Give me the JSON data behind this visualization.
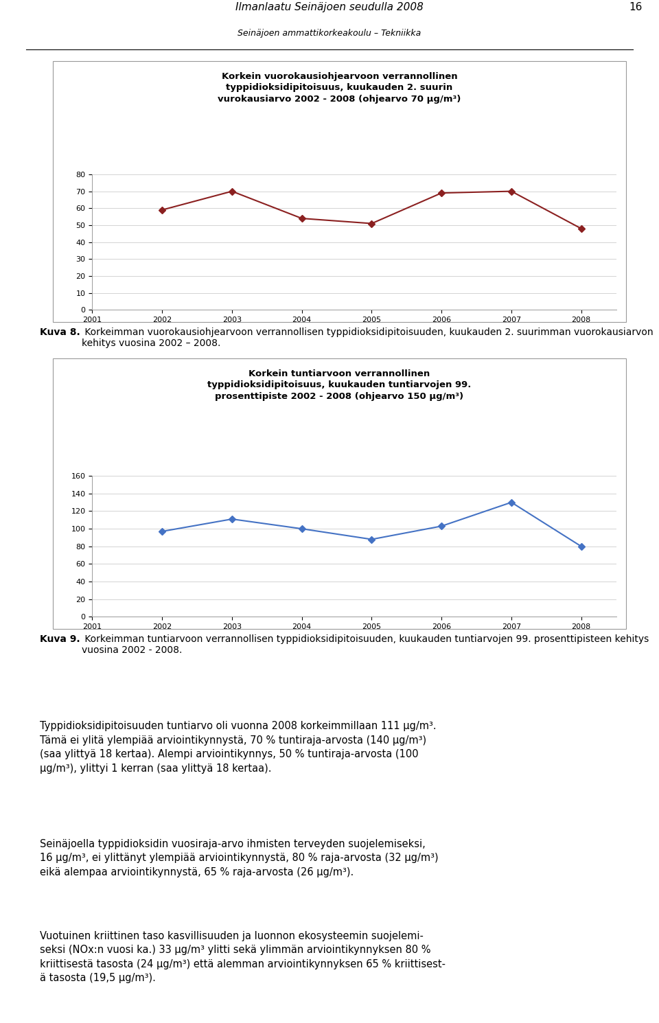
{
  "page_title": "Ilmanlaatu Seinäjoen seudulla 2008",
  "page_subtitle": "Seinäjoen ammattikorkeakoulu – Tekniikka",
  "page_number": "16",
  "chart1": {
    "title_line1": "Korkein vuorokausiohjearvoon verrannollinen",
    "title_line2": "typpidioksidipitoisuus, kuukauden 2. suurin",
    "title_line3": "vurokausiarvo 2002 - 2008 (ohjearvo 70 μg/m³)",
    "years": [
      2002,
      2003,
      2004,
      2005,
      2006,
      2007,
      2008
    ],
    "values": [
      59,
      70,
      54,
      51,
      69,
      70,
      48
    ],
    "color": "#8B2020",
    "marker": "D",
    "ylim": [
      0,
      80
    ],
    "yticks": [
      0,
      10,
      20,
      30,
      40,
      50,
      60,
      70,
      80
    ],
    "xticks": [
      2001,
      2002,
      2003,
      2004,
      2005,
      2006,
      2007,
      2008
    ]
  },
  "caption8_bold": "Kuva 8.",
  "caption8_rest": " Korkeimman vuorokausiohjearvoon verrannollisen typpidioksidipitoisuuden, kuukauden 2. suurimman vuorokausiarvon kehitys vuosina 2002 – 2008.",
  "chart2": {
    "title_line1": "Korkein tuntiarvoon verrannollinen",
    "title_line2": "typpidioksidipitoisuus, kuukauden tuntiarvojen 99.",
    "title_line3": "prosenttipiste 2002 - 2008 (ohjearvo 150 μg/m³)",
    "years": [
      2002,
      2003,
      2004,
      2005,
      2006,
      2007,
      2008
    ],
    "values": [
      97,
      111,
      100,
      88,
      103,
      130,
      80
    ],
    "color": "#4472C4",
    "marker": "D",
    "ylim": [
      0,
      160
    ],
    "yticks": [
      0,
      20,
      40,
      60,
      80,
      100,
      120,
      140,
      160
    ],
    "xticks": [
      2001,
      2002,
      2003,
      2004,
      2005,
      2006,
      2007,
      2008
    ]
  },
  "caption9_bold": "Kuva 9.",
  "caption9_rest": " Korkeimman tuntiarvoon verrannollisen typpidioksidipitoisuuden, kuukauden tuntiarvojen 99. prosenttipisteen kehitys vuosina 2002 - 2008.",
  "para1_line1": "Typpidioksidipitoisuuden tuntiarvo oli vuonna 2008 korkeimmillaan 111 μg/m³.",
  "para1_line2": "Tämä ei ylitä ylempiää arviointikynnystä, 70 % tuntiraja-arvosta (140 μg/m³)",
  "para1_line3": "(saa ylittyä 18 kertaa). Alempi arviointikynnys, 50 % tuntiraja-arvosta (100",
  "para1_line4": "μg/m³), ylittyi 1 kerran (saa ylittyä 18 kertaa).",
  "para2_line1": "Seinäjoella typpidioksidin vuosiraja-arvo ihmisten terveyden suojelemiseksi,",
  "para2_line2": "16 μg/m³, ei ylittänyt ylempiää arviointikynnystä, 80 % raja-arvosta (32 μg/m³)",
  "para2_line3": "eikä alempaa arviointikynnystä, 65 % raja-arvosta (26 μg/m³).",
  "para3_line1": "Vuotuinen kriittinen taso kasvillisuuden ja luonnon ekosysteemin suojelemi-",
  "para3_line2": "seksi (NOx:n vuosi ka.) 33 μg/m³ ylitti sekä ylimmän arviointikynnyksen 80 %",
  "para3_line3": "kriittisestä tasosta (24 μg/m³) että alemman arviointikynnyksen 65 % kriittisest-",
  "para3_line4": "ä tasosta (19,5 μg/m³).",
  "background_color": "#ffffff",
  "chart_bg": "#ffffff",
  "chart_border": "#999999",
  "grid_color": "#cccccc",
  "text_color": "#000000",
  "font_size_axis": 8,
  "font_size_caption": 10,
  "font_size_para": 10.5,
  "font_size_header": 11,
  "font_size_chart_title": 9.5
}
